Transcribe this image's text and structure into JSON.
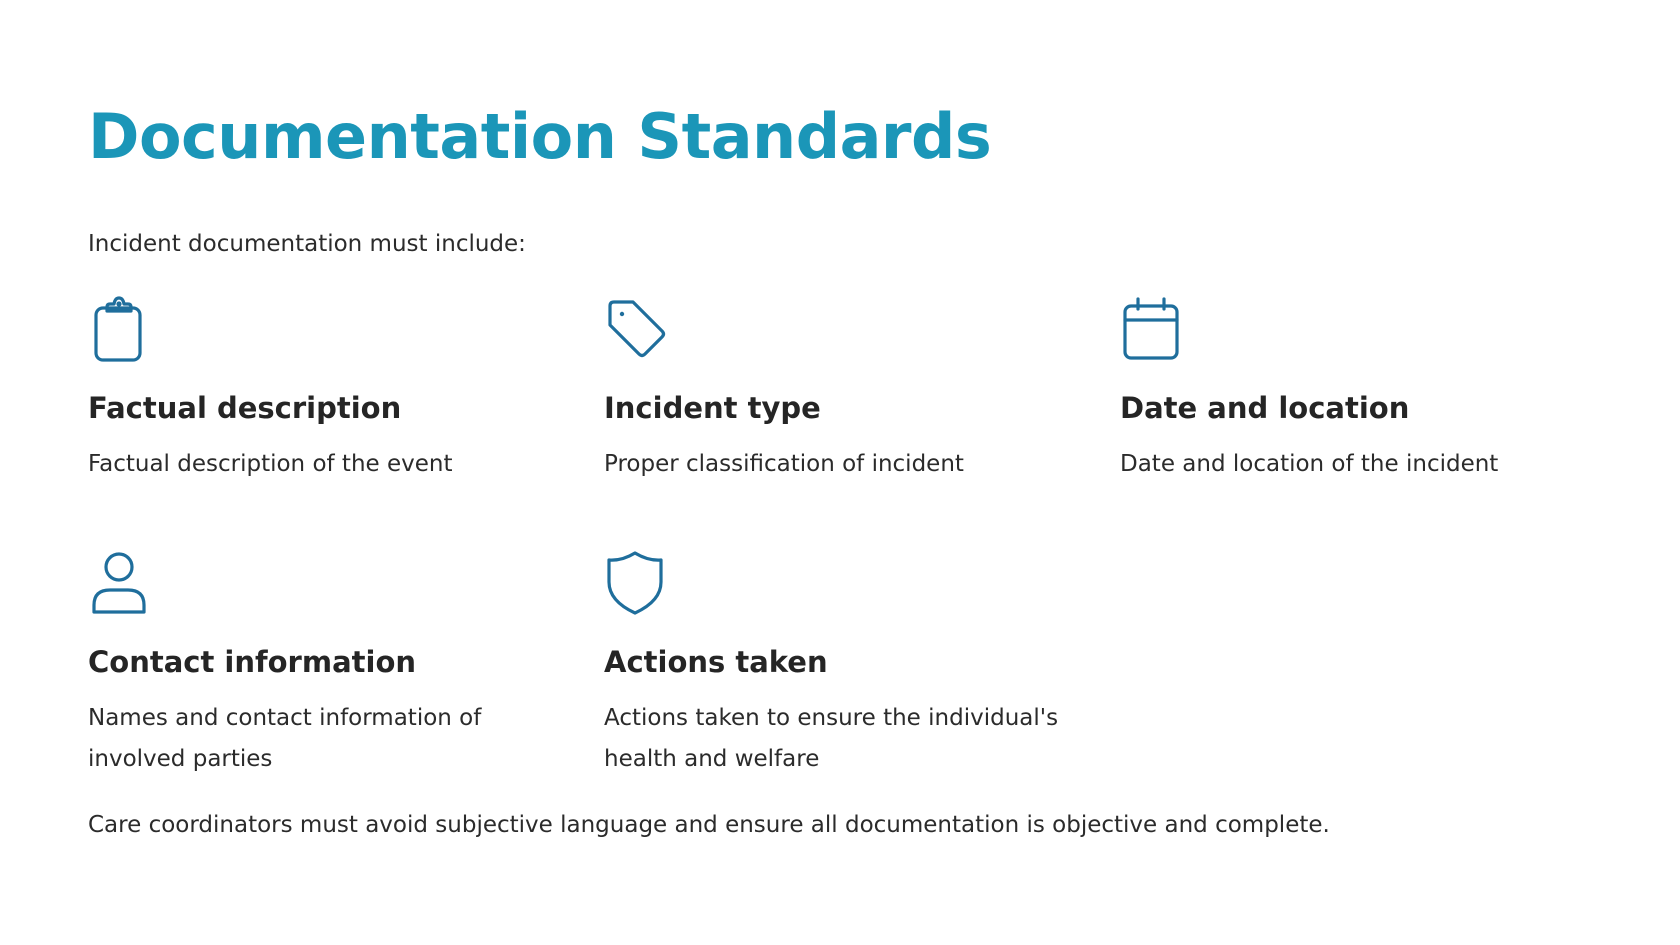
{
  "title": "Documentation Standards",
  "intro": "Incident documentation must include:",
  "accent_color": "#1b96b8",
  "icon_color": "#1f6e9c",
  "items": [
    {
      "icon": "clipboard-icon",
      "heading": "Factual description",
      "text": "Factual description of the event"
    },
    {
      "icon": "tag-icon",
      "heading": "Incident type",
      "text": "Proper classification of incident"
    },
    {
      "icon": "calendar-icon",
      "heading": "Date and location",
      "text": "Date and location of the incident"
    },
    {
      "icon": "user-icon",
      "heading": "Contact information",
      "text": "Names and contact information of involved parties"
    },
    {
      "icon": "shield-icon",
      "heading": "Actions taken",
      "text": "Actions taken to ensure the individual's health and welfare"
    }
  ],
  "footer": "Care coordinators must avoid subjective language and ensure all documentation is objective and complete."
}
